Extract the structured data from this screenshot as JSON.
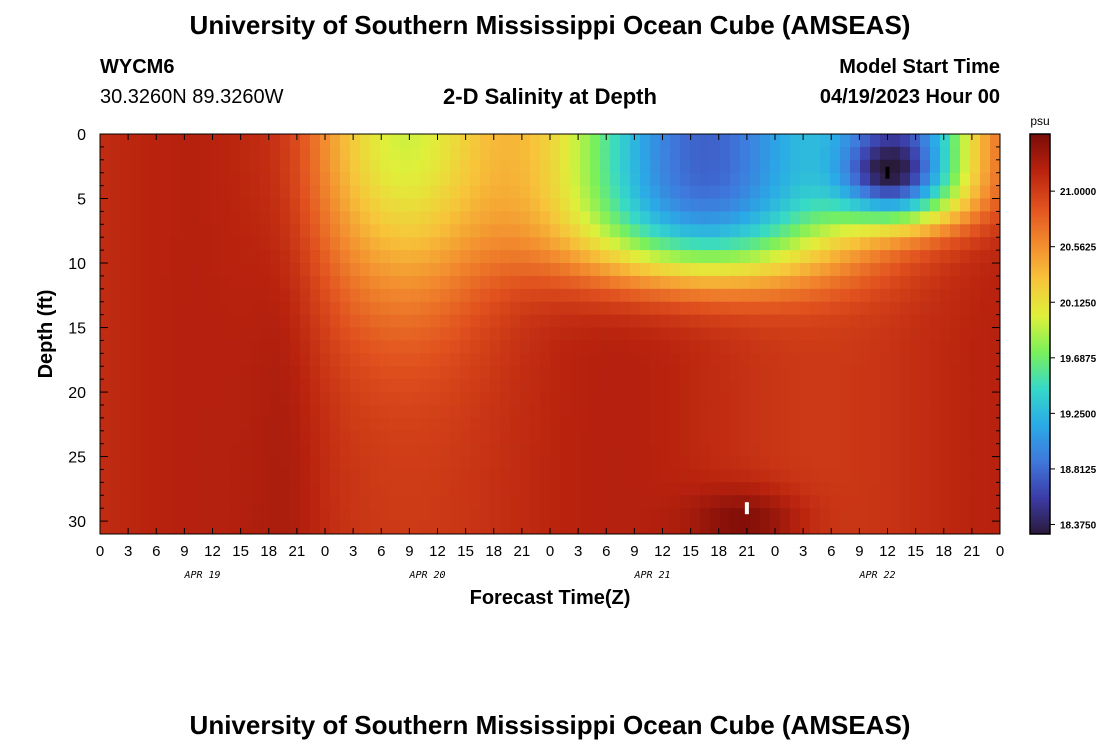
{
  "header": {
    "title": "University of Southern Mississippi Ocean Cube (AMSEAS)",
    "station": "WYCM6",
    "coords": "30.3260N  89.3260W",
    "chart_title": "2-D Salinity at Depth",
    "model_start_label": "Model Start Time",
    "model_start_value": "04/19/2023 Hour 00"
  },
  "footer": {
    "title": "University of Southern Mississippi Ocean Cube (AMSEAS)"
  },
  "chart_data": {
    "type": "heatmap",
    "title": "2-D Salinity at Depth",
    "xlabel": "Forecast Time(Z)",
    "ylabel": "Depth (ft)",
    "units": "psu",
    "x_hours_range": [
      0,
      96
    ],
    "y_depth_range": [
      0,
      31
    ],
    "y_ticks": [
      0,
      5,
      10,
      15,
      20,
      25,
      30
    ],
    "x_tick_labels": [
      "0",
      "3",
      "6",
      "9",
      "12",
      "15",
      "18",
      "21",
      "0",
      "3",
      "6",
      "9",
      "12",
      "15",
      "18",
      "21",
      "0",
      "3",
      "6",
      "9",
      "12",
      "15",
      "18",
      "21",
      "0",
      "3",
      "6",
      "9",
      "12",
      "15",
      "18",
      "21",
      "0"
    ],
    "day_labels": [
      "APR 19",
      "APR 20",
      "APR 21",
      "APR 22"
    ],
    "colorbar": {
      "ticks": [
        "21.0000",
        "20.5625",
        "20.1250",
        "19.6875",
        "19.2500",
        "18.8125",
        "18.3750"
      ],
      "min": 18.3,
      "max": 21.45,
      "colors": [
        "#2a1a3a",
        "#3c3ca8",
        "#3f78dc",
        "#2aaae6",
        "#36d9c8",
        "#7af05a",
        "#dff03a",
        "#f7c43a",
        "#f28a2e",
        "#e0501e",
        "#b8220e",
        "#7a0c08"
      ]
    },
    "markers": [
      {
        "label": "min",
        "hour": 84,
        "depth": 3,
        "color": "#000000"
      },
      {
        "label": "max",
        "hour": 69,
        "depth": 29,
        "color": "#ffffff"
      }
    ]
  }
}
